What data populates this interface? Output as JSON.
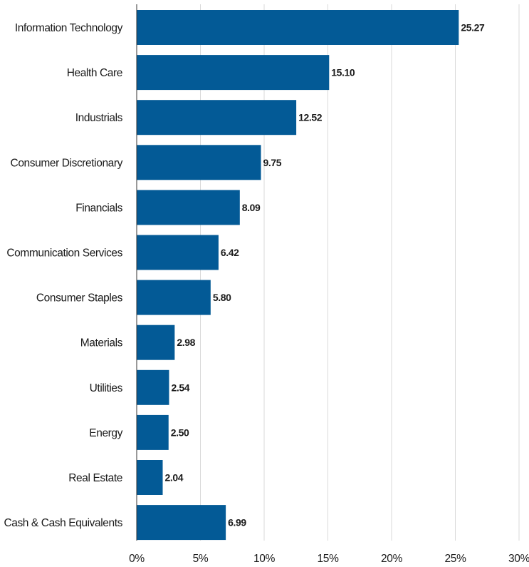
{
  "chart_data": {
    "type": "bar",
    "orientation": "horizontal",
    "title": "",
    "xlabel": "",
    "ylabel": "",
    "categories": [
      "Information Technology",
      "Health Care",
      "Industrials",
      "Consumer Discretionary",
      "Financials",
      "Communication Services",
      "Consumer Staples",
      "Materials",
      "Utilities",
      "Energy",
      "Real Estate",
      "Cash & Cash Equivalents"
    ],
    "values": [
      25.27,
      15.1,
      12.52,
      9.75,
      8.09,
      6.42,
      5.8,
      2.98,
      2.54,
      2.5,
      2.04,
      6.99
    ],
    "value_labels": [
      "25.27",
      "15.10",
      "12.52",
      "9.75",
      "8.09",
      "6.42",
      "5.80",
      "2.98",
      "2.54",
      "2.50",
      "2.04",
      "6.99"
    ],
    "xlim": [
      0,
      30
    ],
    "xticks": [
      0,
      5,
      10,
      15,
      20,
      25,
      30
    ],
    "xtick_labels": [
      "0%",
      "5%",
      "10%",
      "15%",
      "20%",
      "25%",
      "30%"
    ],
    "grid": "vertical",
    "legend": "none",
    "colors": {
      "bar": "#035a96",
      "grid": "#d9d9d9",
      "axis": "#333333",
      "text": "#1a1a1a"
    }
  }
}
